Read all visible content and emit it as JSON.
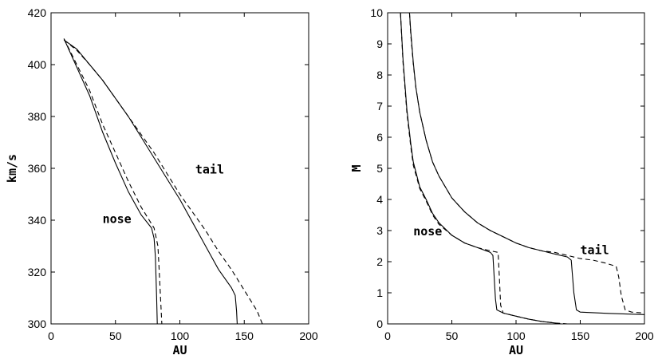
{
  "chart_data": [
    {
      "type": "line",
      "xlabel": "AU",
      "ylabel": "km/s",
      "xlim": [
        0,
        200
      ],
      "ylim": [
        300,
        420
      ],
      "xticks": [
        "0",
        "50",
        "100",
        "150",
        "200"
      ],
      "yticks": [
        "300",
        "320",
        "340",
        "360",
        "380",
        "400",
        "420"
      ],
      "annotations": [
        {
          "text": "tail",
          "x": 112,
          "y": 358
        },
        {
          "text": "nose",
          "x": 40,
          "y": 339
        }
      ],
      "series": [
        {
          "style": "solid",
          "x": [
            10,
            20,
            30,
            40,
            50,
            60,
            70,
            78,
            80,
            81,
            82,
            82.5
          ],
          "y": [
            410,
            399,
            388,
            374,
            362,
            351,
            342,
            337,
            333,
            326,
            310,
            300
          ]
        },
        {
          "style": "dashed",
          "x": [
            10,
            20,
            30,
            40,
            50,
            60,
            70,
            80,
            83,
            84,
            85,
            86
          ],
          "y": [
            410,
            400,
            390,
            377,
            366,
            355,
            345,
            337,
            330,
            320,
            310,
            300
          ]
        },
        {
          "style": "solid",
          "x": [
            10,
            20,
            30,
            40,
            50,
            60,
            70,
            80,
            90,
            100,
            110,
            120,
            130,
            140,
            143,
            144,
            144.5
          ],
          "y": [
            409.5,
            406,
            400,
            394,
            387,
            380,
            372,
            364,
            356,
            348,
            339,
            330,
            321,
            314,
            311,
            305,
            300
          ]
        },
        {
          "style": "dashed",
          "x": [
            10,
            20,
            30,
            40,
            50,
            60,
            70,
            80,
            90,
            100,
            110,
            120,
            130,
            140,
            150,
            160,
            164
          ],
          "y": [
            409.5,
            405.5,
            400,
            394,
            387,
            380,
            373,
            366,
            358,
            350,
            343,
            336,
            328,
            321,
            313,
            305,
            300
          ]
        }
      ]
    },
    {
      "type": "line",
      "xlabel": "AU",
      "ylabel": "M",
      "xlim": [
        0,
        200
      ],
      "ylim": [
        0,
        10
      ],
      "xticks": [
        "0",
        "50",
        "100",
        "150",
        "200"
      ],
      "yticks": [
        "0",
        "1",
        "2",
        "3",
        "4",
        "5",
        "6",
        "7",
        "8",
        "9",
        "10"
      ],
      "annotations": [
        {
          "text": "nose",
          "x": 20,
          "y": 2.85
        },
        {
          "text": "tail",
          "x": 150,
          "y": 2.25
        }
      ],
      "series": [
        {
          "style": "solid",
          "x": [
            10,
            12,
            15,
            18,
            20,
            25,
            30,
            35,
            40,
            50,
            60,
            70,
            80,
            82,
            83,
            84,
            85,
            90,
            100,
            110,
            120,
            130,
            135
          ],
          "y": [
            10,
            8.5,
            6.9,
            5.8,
            5.2,
            4.4,
            4.0,
            3.55,
            3.25,
            2.85,
            2.6,
            2.45,
            2.3,
            2.2,
            1.5,
            0.8,
            0.45,
            0.35,
            0.25,
            0.15,
            0.08,
            0.03,
            0
          ]
        },
        {
          "style": "dashed",
          "x": [
            10,
            12,
            15,
            18,
            20,
            25,
            30,
            35,
            40,
            50,
            60,
            70,
            80,
            86,
            87,
            88,
            90,
            100,
            110,
            120,
            130,
            140
          ],
          "y": [
            10,
            8.4,
            6.8,
            5.7,
            5.1,
            4.35,
            3.95,
            3.5,
            3.2,
            2.85,
            2.6,
            2.45,
            2.35,
            2.3,
            1.5,
            0.6,
            0.35,
            0.25,
            0.15,
            0.08,
            0.03,
            0
          ]
        },
        {
          "style": "solid",
          "x": [
            17,
            18,
            20,
            22,
            25,
            30,
            35,
            40,
            50,
            60,
            70,
            80,
            90,
            100,
            110,
            120,
            130,
            140,
            143,
            145,
            147,
            150,
            170,
            200
          ],
          "y": [
            10,
            9.4,
            8.4,
            7.6,
            6.8,
            5.9,
            5.2,
            4.75,
            4.05,
            3.6,
            3.25,
            3.0,
            2.8,
            2.6,
            2.45,
            2.35,
            2.25,
            2.15,
            2.05,
            1.0,
            0.45,
            0.38,
            0.34,
            0.3
          ]
        },
        {
          "style": "dashed",
          "x": [
            17,
            18,
            20,
            22,
            25,
            30,
            35,
            40,
            50,
            60,
            70,
            80,
            90,
            100,
            110,
            120,
            130,
            140,
            150,
            160,
            170,
            178,
            180,
            182,
            185,
            190,
            200
          ],
          "y": [
            10,
            9.3,
            8.35,
            7.6,
            6.8,
            5.9,
            5.2,
            4.75,
            4.05,
            3.6,
            3.25,
            3.0,
            2.8,
            2.6,
            2.45,
            2.35,
            2.3,
            2.2,
            2.1,
            2.05,
            1.95,
            1.85,
            1.5,
            0.9,
            0.45,
            0.38,
            0.35
          ]
        }
      ]
    }
  ]
}
